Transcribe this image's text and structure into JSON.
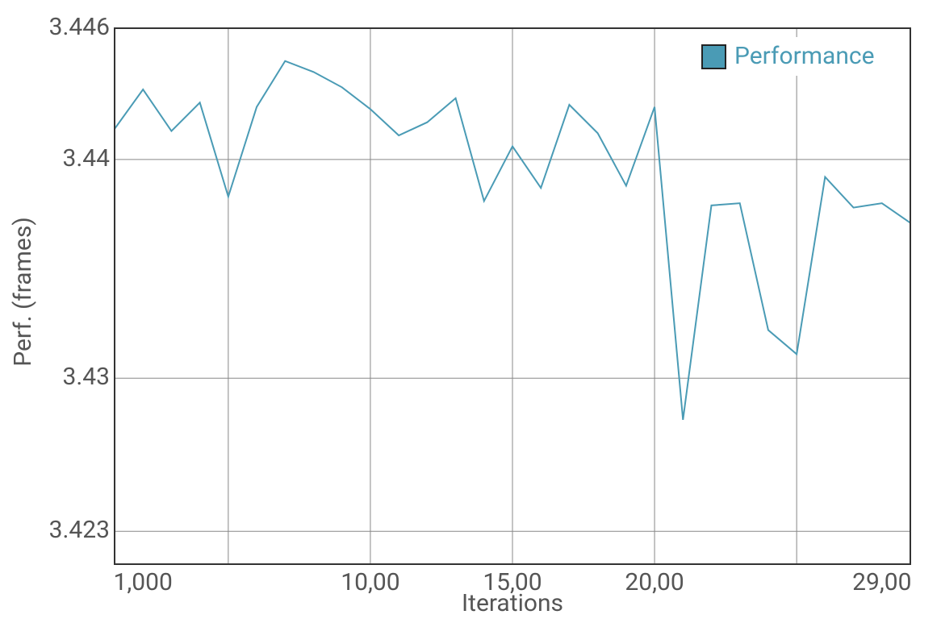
{
  "chart_data": {
    "type": "line",
    "x_label": "Iterations",
    "y_label": "Perf. (frames)",
    "x": [
      0,
      1,
      2,
      3,
      4,
      5,
      6,
      7,
      8,
      9,
      10,
      11,
      12,
      13,
      14,
      15,
      16,
      17,
      18,
      19,
      20,
      21,
      22,
      23,
      24,
      25,
      26,
      27,
      28
    ],
    "series": [
      {
        "name": "Performance",
        "color": "#4a9bb5",
        "values": [
          3.4414,
          3.4432,
          3.4413,
          3.4426,
          3.4383,
          3.4424,
          3.4445,
          3.444,
          3.4433,
          3.4423,
          3.4411,
          3.4417,
          3.4428,
          3.4381,
          3.4406,
          3.4387,
          3.4425,
          3.4412,
          3.4388,
          3.4424,
          3.4281,
          3.4379,
          3.438,
          3.4322,
          3.4311,
          3.4392,
          3.4378,
          3.438,
          3.4371
        ]
      }
    ],
    "xlim": [
      0,
      28
    ],
    "xticks": [
      {
        "value": 1,
        "label": "1,000"
      },
      {
        "value": 9,
        "label": "10,00"
      },
      {
        "value": 14,
        "label": "15,00"
      },
      {
        "value": 19,
        "label": "20,00"
      },
      {
        "value": 27,
        "label": "29,00"
      }
    ],
    "xgrid": [
      4,
      9,
      14,
      19,
      24
    ],
    "ylim": [
      3.4215,
      3.446
    ],
    "yticks": [
      3.423,
      3.43,
      3.44,
      3.446
    ],
    "grid": true,
    "legend": "top-right"
  }
}
